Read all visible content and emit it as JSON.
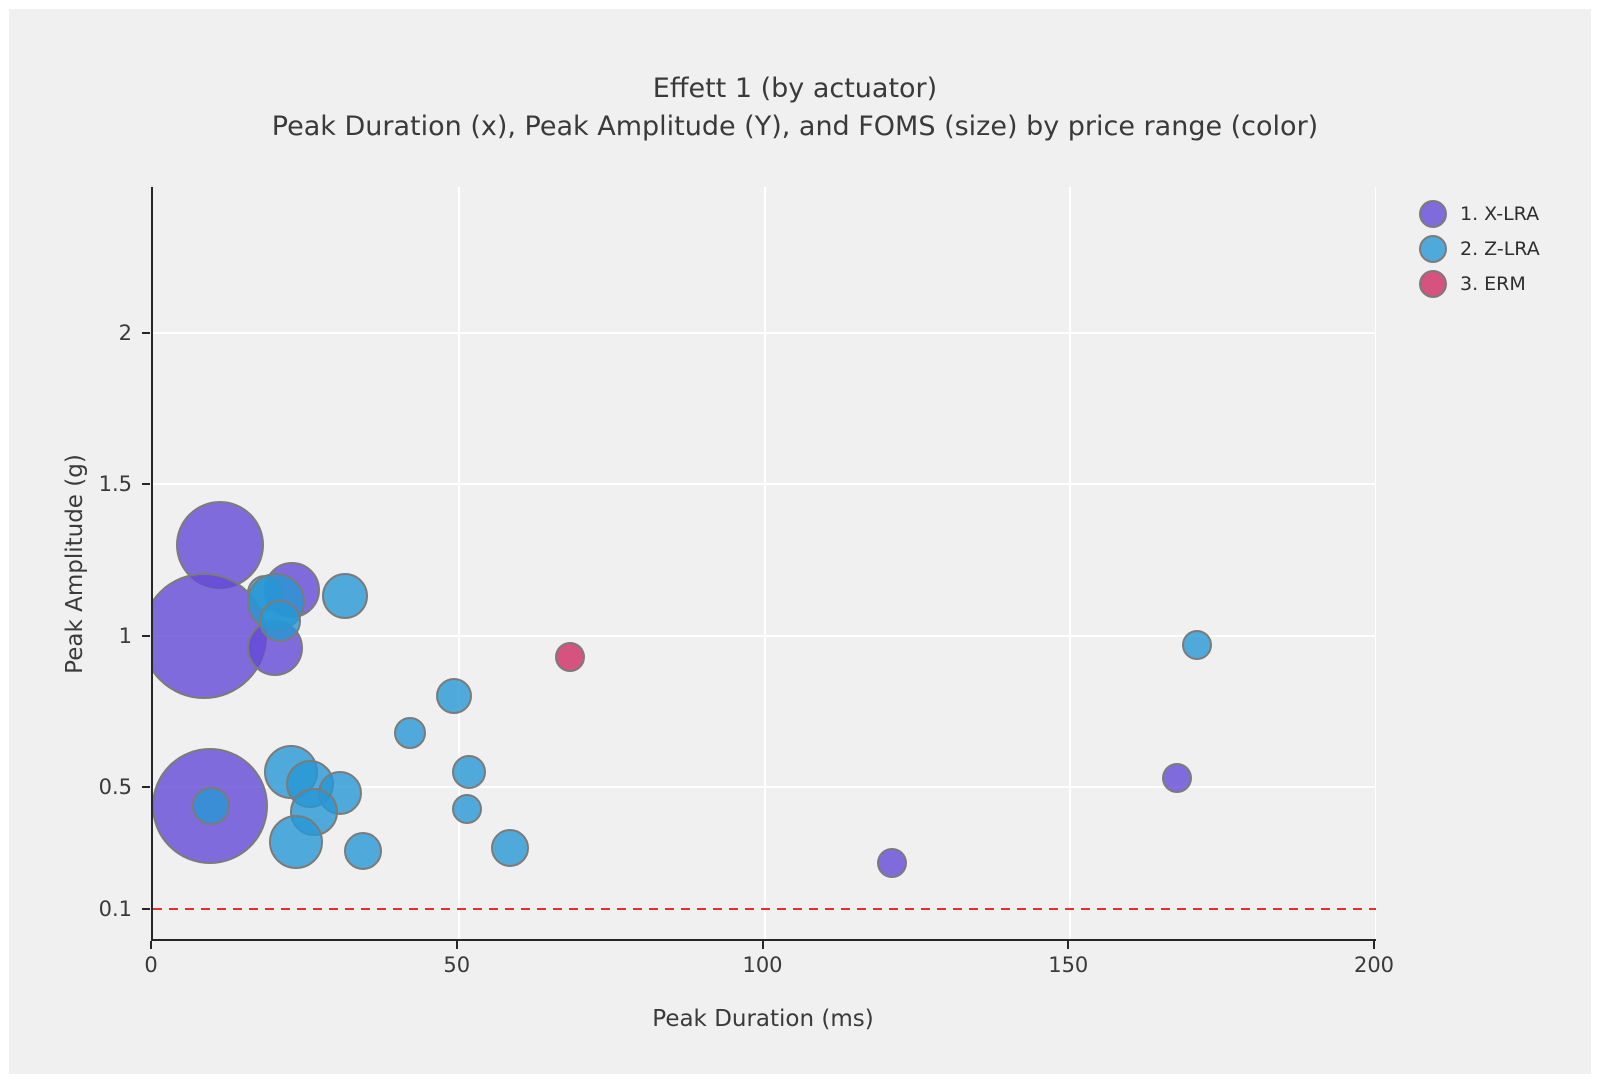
{
  "chart_data": {
    "type": "scatter",
    "title": "Effett 1 (by actuator)",
    "subtitle": "Peak Duration (x), Peak Amplitude (Y), and FOMS (size) by price range (color)",
    "xlabel": "Peak Duration (ms)",
    "ylabel": "Peak Amplitude (g)",
    "xlim": [
      0,
      200
    ],
    "ylim": [
      0,
      2.48
    ],
    "grid": {
      "on": true,
      "x_values": [
        50,
        100,
        150,
        200
      ],
      "y_values": [
        0.5,
        1,
        1.5,
        2
      ]
    },
    "x_ticks": [
      {
        "value": 0,
        "label": "0"
      },
      {
        "value": 50,
        "label": "50"
      },
      {
        "value": 100,
        "label": "100"
      },
      {
        "value": 150,
        "label": "150"
      },
      {
        "value": 200,
        "label": "200"
      }
    ],
    "y_ticks": [
      {
        "value": 0.1,
        "label": "0.1"
      },
      {
        "value": 0.5,
        "label": "0.5"
      },
      {
        "value": 1,
        "label": "1"
      },
      {
        "value": 1.5,
        "label": "1.5"
      },
      {
        "value": 2,
        "label": "2"
      }
    ],
    "threshold_line": {
      "y": 0.1,
      "color": "#e53228",
      "style": "dashed"
    },
    "legend_position": "top-right-outside",
    "series": [
      {
        "name": "1. X-LRA",
        "color": "rgba(100,74,215,0.8)"
      },
      {
        "name": "2. Z-LRA",
        "color": "rgba(39,151,212,0.8)"
      },
      {
        "name": "3. ERM",
        "color": "rgba(206,44,98,0.8)"
      }
    ],
    "size_encoding": "FOMS",
    "bubbles": [
      {
        "series": 0,
        "x": 11.0,
        "y": 1.3,
        "r": 44
      },
      {
        "series": 0,
        "x": 8.3,
        "y": 1.0,
        "r": 63
      },
      {
        "series": 0,
        "x": 22.7,
        "y": 1.15,
        "r": 28
      },
      {
        "series": 0,
        "x": 20.0,
        "y": 0.96,
        "r": 28
      },
      {
        "series": 0,
        "x": 9.3,
        "y": 0.44,
        "r": 58
      },
      {
        "series": 0,
        "x": 120.9,
        "y": 0.25,
        "r": 15
      },
      {
        "series": 0,
        "x": 167.5,
        "y": 0.53,
        "r": 15
      },
      {
        "series": 1,
        "x": 18.3,
        "y": 1.14,
        "r": 18
      },
      {
        "series": 1,
        "x": 20.1,
        "y": 1.11,
        "r": 29
      },
      {
        "series": 1,
        "x": 20.8,
        "y": 1.05,
        "r": 21
      },
      {
        "series": 1,
        "x": 31.4,
        "y": 1.13,
        "r": 23
      },
      {
        "series": 1,
        "x": 9.5,
        "y": 0.44,
        "r": 19
      },
      {
        "series": 1,
        "x": 22.6,
        "y": 0.55,
        "r": 27
      },
      {
        "series": 1,
        "x": 25.7,
        "y": 0.51,
        "r": 24
      },
      {
        "series": 1,
        "x": 30.6,
        "y": 0.48,
        "r": 22
      },
      {
        "series": 1,
        "x": 26.3,
        "y": 0.42,
        "r": 24
      },
      {
        "series": 1,
        "x": 23.4,
        "y": 0.32,
        "r": 27
      },
      {
        "series": 1,
        "x": 34.3,
        "y": 0.29,
        "r": 19
      },
      {
        "series": 1,
        "x": 42.0,
        "y": 0.68,
        "r": 16
      },
      {
        "series": 1,
        "x": 49.2,
        "y": 0.8,
        "r": 18
      },
      {
        "series": 1,
        "x": 51.7,
        "y": 0.55,
        "r": 17
      },
      {
        "series": 1,
        "x": 51.4,
        "y": 0.43,
        "r": 15
      },
      {
        "series": 1,
        "x": 58.4,
        "y": 0.3,
        "r": 19
      },
      {
        "series": 1,
        "x": 170.7,
        "y": 0.97,
        "r": 15
      },
      {
        "series": 2,
        "x": 68.2,
        "y": 0.93,
        "r": 15
      }
    ],
    "colors": {
      "figure_background": "#ffffff",
      "axes_background": "#f0f0f0",
      "gridline": "#ffffff",
      "spine": "#262626",
      "bubble_edge": "#7b7b79",
      "text": "#3a3a3a",
      "threshold_red": "#e53228"
    }
  }
}
